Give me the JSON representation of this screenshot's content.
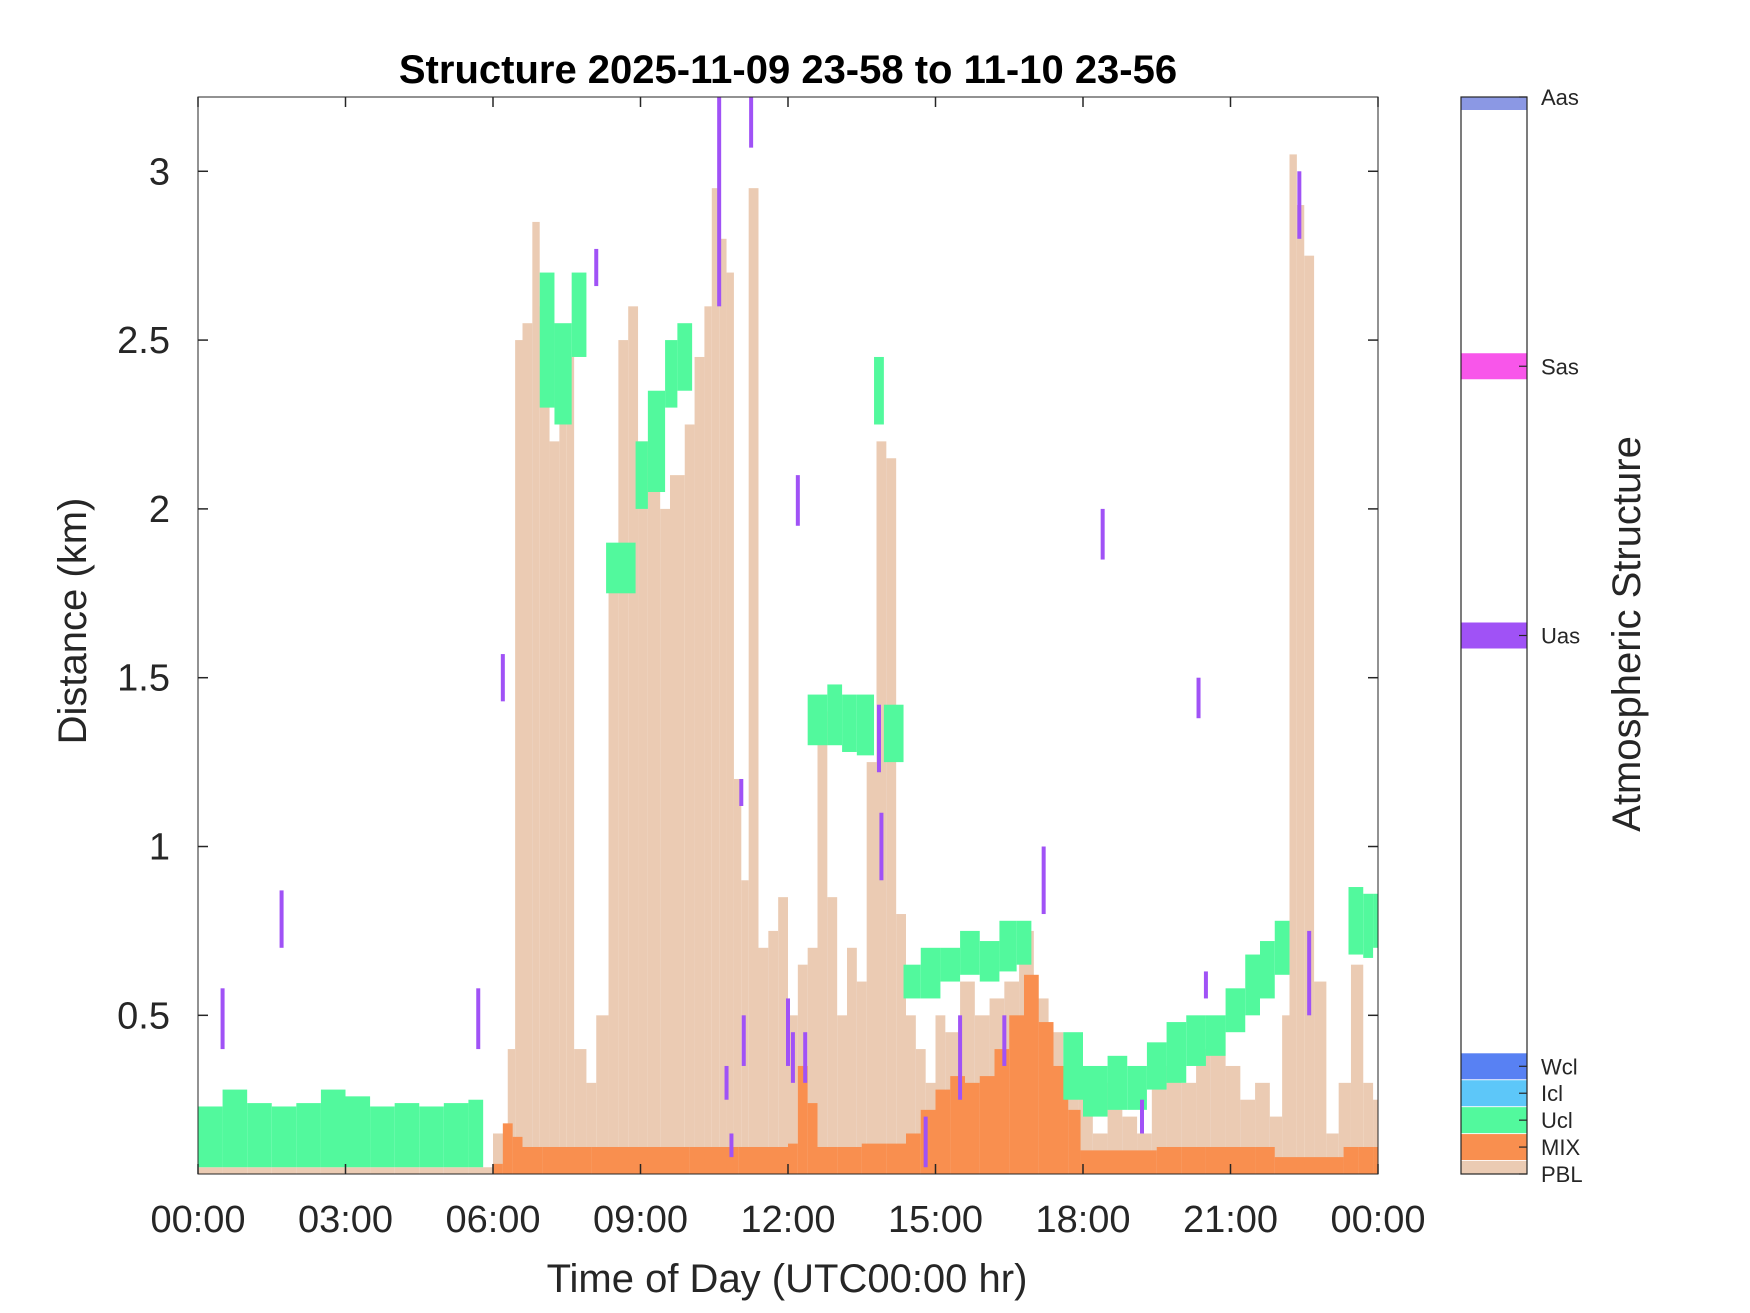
{
  "chart_data": {
    "type": "heatmap",
    "title": "Structure 2025-11-09 23-58 to 11-10 23-56",
    "xlabel": "Time of Day (UTC00:00 hr)",
    "ylabel": "Distance (km)",
    "xlim": [
      0,
      24
    ],
    "ylim": [
      0.03,
      3.22
    ],
    "x_ticks": [
      0,
      3,
      6,
      9,
      12,
      15,
      18,
      21,
      24
    ],
    "x_tick_labels": [
      "00:00",
      "03:00",
      "06:00",
      "09:00",
      "12:00",
      "15:00",
      "18:00",
      "21:00",
      "00:00"
    ],
    "y_ticks": [
      0.5,
      1,
      1.5,
      2,
      2.5,
      3
    ],
    "y_tick_labels": [
      "0.5",
      "1",
      "1.5",
      "2",
      "2.5",
      "3"
    ],
    "grid": false,
    "colorbar": {
      "label": "Atmospheric Structure",
      "classes": [
        {
          "name": "PBL",
          "color": "#EBCBB3"
        },
        {
          "name": "MIX",
          "color": "#F98F4F"
        },
        {
          "name": "Ucl",
          "color": "#52F99D"
        },
        {
          "name": "Icl",
          "color": "#5DC7F9"
        },
        {
          "name": "Wcl",
          "color": "#5881F3"
        },
        {
          "name": "Uas",
          "color": "#A052F6"
        },
        {
          "name": "Sas",
          "color": "#F856EA"
        },
        {
          "name": "Aas",
          "color": "#8B98E4"
        }
      ]
    },
    "series": [
      {
        "name": "PBL",
        "type": "columns",
        "color": "#EBCBB3",
        "points": [
          [
            0.0,
            0.05
          ],
          [
            0.5,
            0.05
          ],
          [
            1.0,
            0.05
          ],
          [
            1.5,
            0.05
          ],
          [
            2.0,
            0.05
          ],
          [
            2.5,
            0.05
          ],
          [
            3.0,
            0.05
          ],
          [
            3.5,
            0.05
          ],
          [
            4.0,
            0.05
          ],
          [
            4.5,
            0.05
          ],
          [
            5.0,
            0.05
          ],
          [
            5.5,
            0.05
          ],
          [
            6.0,
            0.15
          ],
          [
            6.3,
            0.4
          ],
          [
            6.45,
            2.5
          ],
          [
            6.6,
            2.55
          ],
          [
            6.8,
            2.85
          ],
          [
            6.95,
            2.6
          ],
          [
            7.15,
            2.2
          ],
          [
            7.35,
            2.5
          ],
          [
            7.5,
            2.45
          ],
          [
            7.65,
            0.4
          ],
          [
            7.9,
            0.3
          ],
          [
            8.1,
            0.5
          ],
          [
            8.35,
            1.8
          ],
          [
            8.55,
            2.5
          ],
          [
            8.75,
            2.6
          ],
          [
            8.95,
            2.2
          ],
          [
            9.15,
            2.05
          ],
          [
            9.4,
            2.0
          ],
          [
            9.6,
            2.1
          ],
          [
            9.9,
            2.25
          ],
          [
            10.1,
            2.45
          ],
          [
            10.3,
            2.6
          ],
          [
            10.45,
            2.95
          ],
          [
            10.6,
            2.8
          ],
          [
            10.75,
            2.7
          ],
          [
            10.9,
            1.2
          ],
          [
            11.05,
            0.9
          ],
          [
            11.2,
            2.95
          ],
          [
            11.4,
            0.7
          ],
          [
            11.6,
            0.75
          ],
          [
            11.8,
            0.85
          ],
          [
            12.0,
            0.5
          ],
          [
            12.2,
            0.65
          ],
          [
            12.4,
            0.7
          ],
          [
            12.6,
            1.4
          ],
          [
            12.8,
            0.85
          ],
          [
            13.0,
            0.5
          ],
          [
            13.2,
            0.7
          ],
          [
            13.4,
            0.6
          ],
          [
            13.6,
            1.25
          ],
          [
            13.8,
            2.2
          ],
          [
            14.0,
            2.15
          ],
          [
            14.2,
            0.8
          ],
          [
            14.4,
            0.5
          ],
          [
            14.6,
            0.4
          ],
          [
            14.8,
            0.3
          ],
          [
            15.0,
            0.5
          ],
          [
            15.2,
            0.45
          ],
          [
            15.5,
            0.6
          ],
          [
            15.8,
            0.5
          ],
          [
            16.1,
            0.55
          ],
          [
            16.4,
            0.6
          ],
          [
            16.7,
            0.75
          ],
          [
            17.0,
            0.55
          ],
          [
            17.3,
            0.45
          ],
          [
            17.6,
            0.35
          ],
          [
            17.9,
            0.3
          ],
          [
            18.2,
            0.15
          ],
          [
            18.5,
            0.3
          ],
          [
            18.8,
            0.2
          ],
          [
            19.1,
            0.15
          ],
          [
            19.4,
            0.3
          ],
          [
            19.7,
            0.35
          ],
          [
            20.0,
            0.3
          ],
          [
            20.3,
            0.4
          ],
          [
            20.6,
            0.45
          ],
          [
            20.9,
            0.35
          ],
          [
            21.2,
            0.25
          ],
          [
            21.5,
            0.3
          ],
          [
            21.8,
            0.2
          ],
          [
            22.05,
            0.5
          ],
          [
            22.2,
            3.05
          ],
          [
            22.35,
            2.9
          ],
          [
            22.5,
            2.75
          ],
          [
            22.7,
            0.6
          ],
          [
            22.95,
            0.15
          ],
          [
            23.2,
            0.3
          ],
          [
            23.45,
            0.65
          ],
          [
            23.7,
            0.3
          ],
          [
            23.9,
            0.25
          ]
        ]
      },
      {
        "name": "MIX",
        "type": "columns",
        "color": "#F98F4F",
        "points": [
          [
            6.0,
            0.06
          ],
          [
            6.2,
            0.18
          ],
          [
            6.4,
            0.14
          ],
          [
            6.6,
            0.11
          ],
          [
            7.0,
            0.11
          ],
          [
            8.0,
            0.11
          ],
          [
            9.0,
            0.11
          ],
          [
            10.0,
            0.11
          ],
          [
            11.0,
            0.11
          ],
          [
            12.0,
            0.12
          ],
          [
            12.2,
            0.35
          ],
          [
            12.4,
            0.24
          ],
          [
            12.6,
            0.11
          ],
          [
            13.0,
            0.11
          ],
          [
            13.5,
            0.12
          ],
          [
            14.0,
            0.12
          ],
          [
            14.4,
            0.15
          ],
          [
            14.7,
            0.22
          ],
          [
            15.0,
            0.28
          ],
          [
            15.3,
            0.32
          ],
          [
            15.6,
            0.3
          ],
          [
            15.9,
            0.32
          ],
          [
            16.2,
            0.4
          ],
          [
            16.5,
            0.5
          ],
          [
            16.8,
            0.62
          ],
          [
            17.1,
            0.48
          ],
          [
            17.4,
            0.35
          ],
          [
            17.7,
            0.22
          ],
          [
            17.95,
            0.1
          ],
          [
            19.5,
            0.11
          ],
          [
            20.0,
            0.11
          ],
          [
            20.5,
            0.11
          ],
          [
            21.0,
            0.11
          ],
          [
            21.5,
            0.11
          ],
          [
            21.9,
            0.08
          ],
          [
            23.3,
            0.11
          ],
          [
            23.6,
            0.11
          ],
          [
            23.9,
            0.11
          ]
        ]
      },
      {
        "name": "Ucl",
        "type": "bands",
        "color": "#52F99D",
        "points": [
          [
            0.0,
            0.05,
            0.23
          ],
          [
            0.5,
            0.05,
            0.28
          ],
          [
            1.0,
            0.05,
            0.24
          ],
          [
            1.5,
            0.05,
            0.23
          ],
          [
            2.0,
            0.05,
            0.24
          ],
          [
            2.5,
            0.05,
            0.28
          ],
          [
            3.0,
            0.05,
            0.26
          ],
          [
            3.5,
            0.05,
            0.23
          ],
          [
            4.0,
            0.05,
            0.24
          ],
          [
            4.5,
            0.05,
            0.23
          ],
          [
            5.0,
            0.05,
            0.24
          ],
          [
            5.5,
            0.05,
            0.25
          ],
          [
            6.95,
            2.3,
            2.7
          ],
          [
            7.25,
            2.25,
            2.55
          ],
          [
            7.6,
            2.45,
            2.7
          ],
          [
            8.3,
            1.75,
            1.9
          ],
          [
            8.9,
            2.0,
            2.2
          ],
          [
            9.15,
            2.05,
            2.35
          ],
          [
            9.5,
            2.3,
            2.5
          ],
          [
            9.75,
            2.35,
            2.55
          ],
          [
            12.4,
            1.3,
            1.45
          ],
          [
            12.8,
            1.3,
            1.48
          ],
          [
            13.1,
            1.28,
            1.45
          ],
          [
            13.4,
            1.27,
            1.45
          ],
          [
            13.75,
            2.25,
            2.45
          ],
          [
            13.95,
            1.25,
            1.42
          ],
          [
            14.35,
            0.55,
            0.65
          ],
          [
            14.7,
            0.55,
            0.7
          ],
          [
            15.1,
            0.6,
            0.7
          ],
          [
            15.5,
            0.62,
            0.75
          ],
          [
            15.9,
            0.6,
            0.72
          ],
          [
            16.3,
            0.63,
            0.78
          ],
          [
            16.65,
            0.65,
            0.78
          ],
          [
            17.6,
            0.25,
            0.45
          ],
          [
            18.0,
            0.2,
            0.35
          ],
          [
            18.5,
            0.22,
            0.38
          ],
          [
            18.9,
            0.22,
            0.35
          ],
          [
            19.3,
            0.28,
            0.42
          ],
          [
            19.7,
            0.3,
            0.48
          ],
          [
            20.1,
            0.35,
            0.5
          ],
          [
            20.5,
            0.38,
            0.5
          ],
          [
            20.9,
            0.45,
            0.58
          ],
          [
            21.3,
            0.5,
            0.68
          ],
          [
            21.6,
            0.55,
            0.72
          ],
          [
            21.9,
            0.62,
            0.78
          ],
          [
            23.4,
            0.68,
            0.88
          ],
          [
            23.7,
            0.67,
            0.86
          ],
          [
            23.9,
            0.7,
            0.86
          ]
        ]
      },
      {
        "name": "Uas",
        "type": "segments",
        "color": "#A052F6",
        "points": [
          [
            0.5,
            0.4,
            0.58
          ],
          [
            1.7,
            0.7,
            0.87
          ],
          [
            5.7,
            0.4,
            0.58
          ],
          [
            6.2,
            1.43,
            1.57
          ],
          [
            8.1,
            2.66,
            2.77
          ],
          [
            10.6,
            2.6,
            3.22
          ],
          [
            11.25,
            3.07,
            3.22
          ],
          [
            10.75,
            0.25,
            0.35
          ],
          [
            10.85,
            0.08,
            0.15
          ],
          [
            11.1,
            0.35,
            0.5
          ],
          [
            11.05,
            1.12,
            1.2
          ],
          [
            12.2,
            1.95,
            2.1
          ],
          [
            12.0,
            0.35,
            0.55
          ],
          [
            12.1,
            0.3,
            0.45
          ],
          [
            12.35,
            0.3,
            0.45
          ],
          [
            13.85,
            1.22,
            1.42
          ],
          [
            13.9,
            0.9,
            1.1
          ],
          [
            14.8,
            0.05,
            0.2
          ],
          [
            15.5,
            0.25,
            0.5
          ],
          [
            16.4,
            0.35,
            0.5
          ],
          [
            17.2,
            0.8,
            1.0
          ],
          [
            18.4,
            1.85,
            2.0
          ],
          [
            19.2,
            0.15,
            0.25
          ],
          [
            20.35,
            1.38,
            1.5
          ],
          [
            20.5,
            0.55,
            0.63
          ],
          [
            22.4,
            2.8,
            3.0
          ],
          [
            22.6,
            0.5,
            0.75
          ]
        ]
      }
    ]
  }
}
